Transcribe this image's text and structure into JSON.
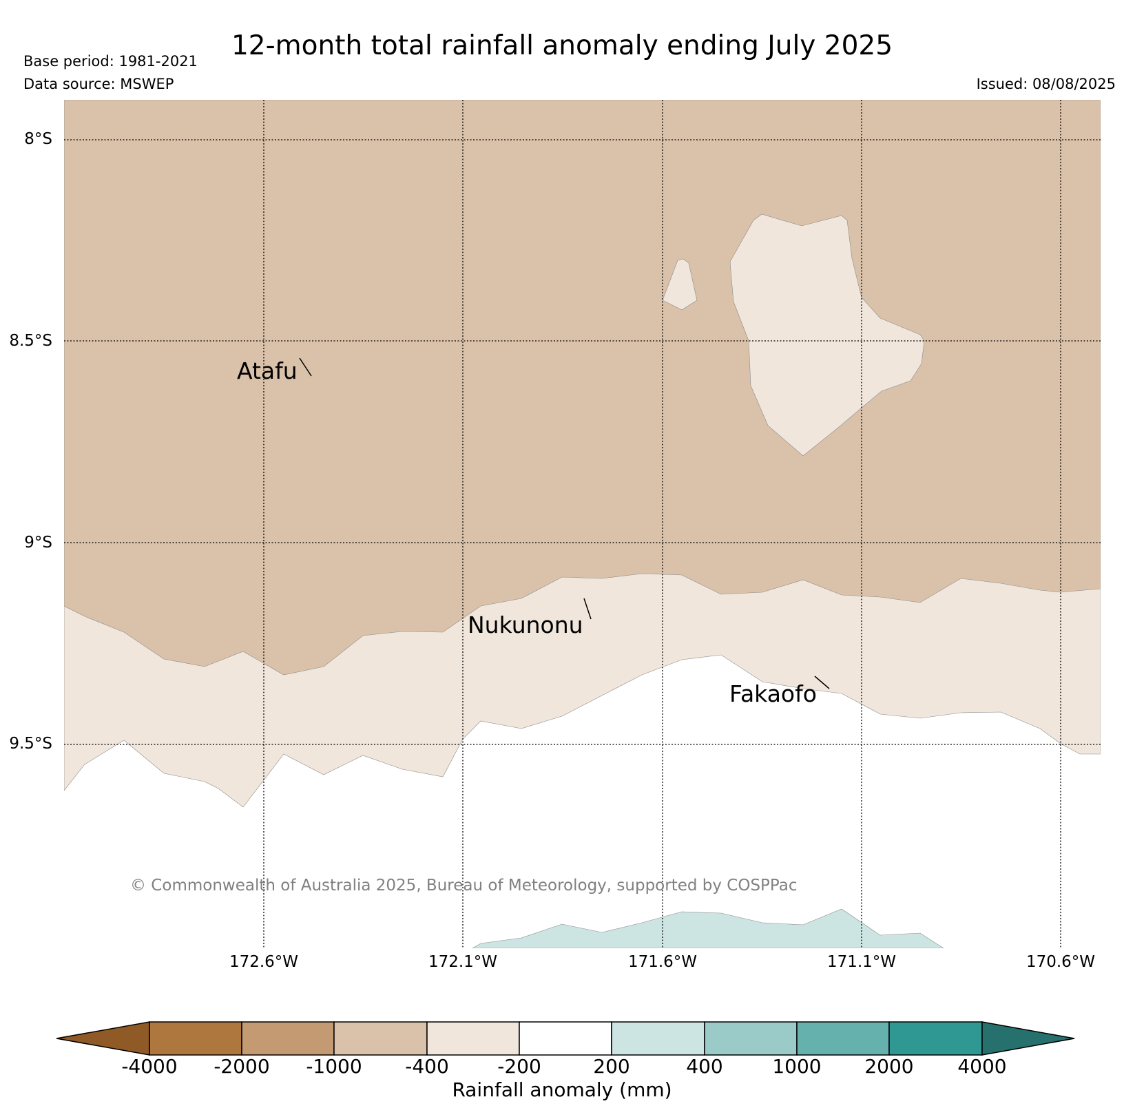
{
  "title": "12-month total rainfall anomaly ending July 2025",
  "base_period": "Base period: 1981-2021",
  "data_source": "Data source: MSWEP",
  "issued": "Issued: 08/08/2025",
  "copyright": "© Commonwealth of Australia 2025, Bureau of Meteorology, supported by COSPPac",
  "map": {
    "lat_labels": [
      "8°S",
      "8.5°S",
      "9°S",
      "9.5°S"
    ],
    "lon_labels": [
      "172.6°W",
      "172.1°W",
      "171.6°W",
      "171.1°W",
      "170.6°W"
    ],
    "gridlines": "dotted",
    "places": [
      {
        "name": "Atafu",
        "lon": -172.5,
        "lat": -8.55
      },
      {
        "name": "Nukunonu",
        "lon": -171.85,
        "lat": -9.17
      },
      {
        "name": "Fakaofo",
        "lon": -171.2,
        "lat": -9.38
      }
    ]
  },
  "colorbar": {
    "label": "Rainfall anomaly (mm)",
    "ticks": [
      "-4000",
      "-2000",
      "-1000",
      "-400",
      "-200",
      "200",
      "400",
      "1000",
      "2000",
      "4000"
    ],
    "colors": [
      "#8f5a26",
      "#ae773e",
      "#c39a72",
      "#dac2aa",
      "#f0e6dc",
      "#ffffff",
      "#cce4e2",
      "#9bcbc8",
      "#65b1ae",
      "#2f9893",
      "#26716d"
    ],
    "extend": "both"
  },
  "fill_colors": {
    "band_-1000_-400": "#dac2aa",
    "band_-400_-200": "#f0e6dc",
    "band_-200_200": "#ffffff",
    "band_200_400": "#cce4e2"
  }
}
